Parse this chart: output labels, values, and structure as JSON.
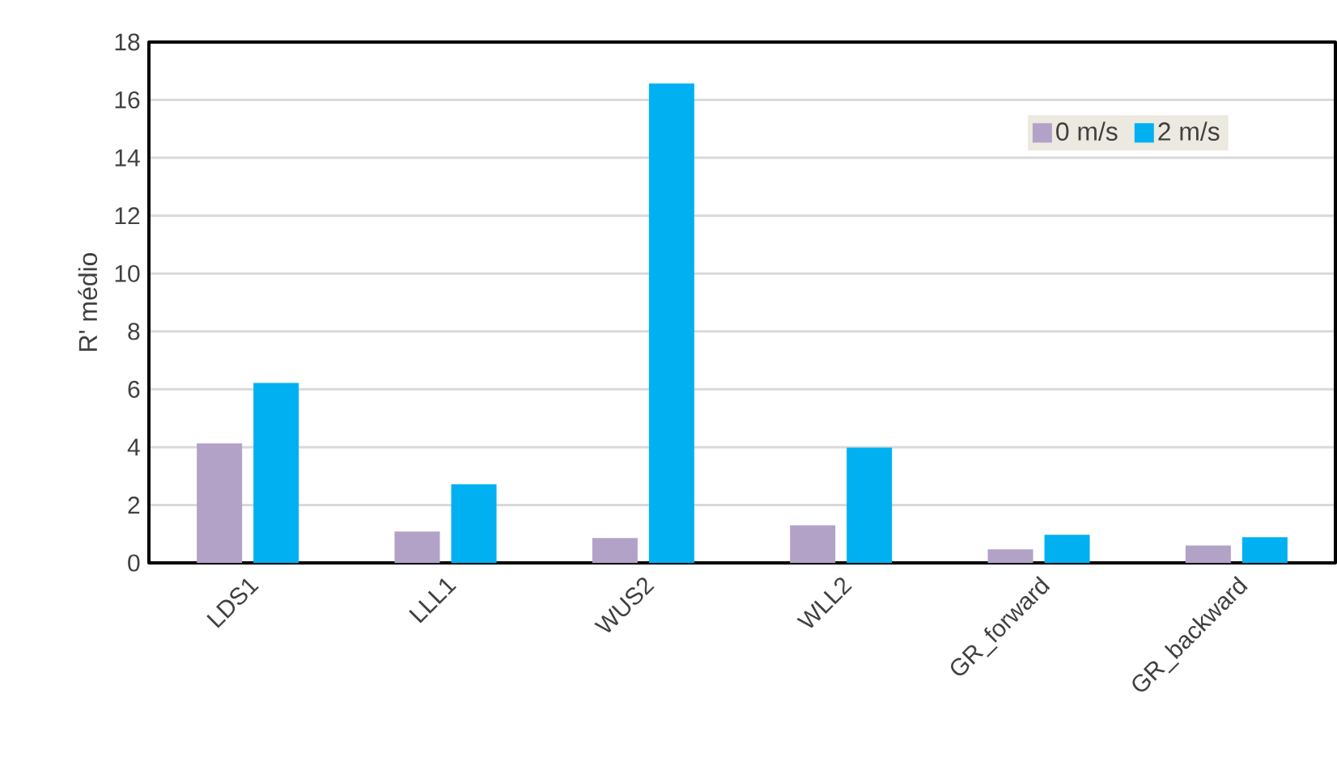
{
  "chart_data": {
    "type": "bar",
    "ylabel": "R' médio",
    "categories": [
      "LDS1",
      "LLL1",
      "WUS2",
      "WLL2",
      "GR_forward",
      "GR_backward"
    ],
    "series": [
      {
        "name": "0 m/s",
        "color": "#b3a2c7",
        "values": [
          4.13,
          1.08,
          0.86,
          1.3,
          0.47,
          0.6
        ]
      },
      {
        "name": "2 m/s",
        "color": "#00b0f0",
        "values": [
          6.22,
          2.72,
          16.57,
          3.98,
          0.97,
          0.89
        ]
      }
    ],
    "ylim": [
      0,
      18
    ],
    "yticks": [
      0,
      2,
      4,
      6,
      8,
      10,
      12,
      14,
      16,
      18
    ],
    "grid": "y",
    "legend": "top right"
  }
}
